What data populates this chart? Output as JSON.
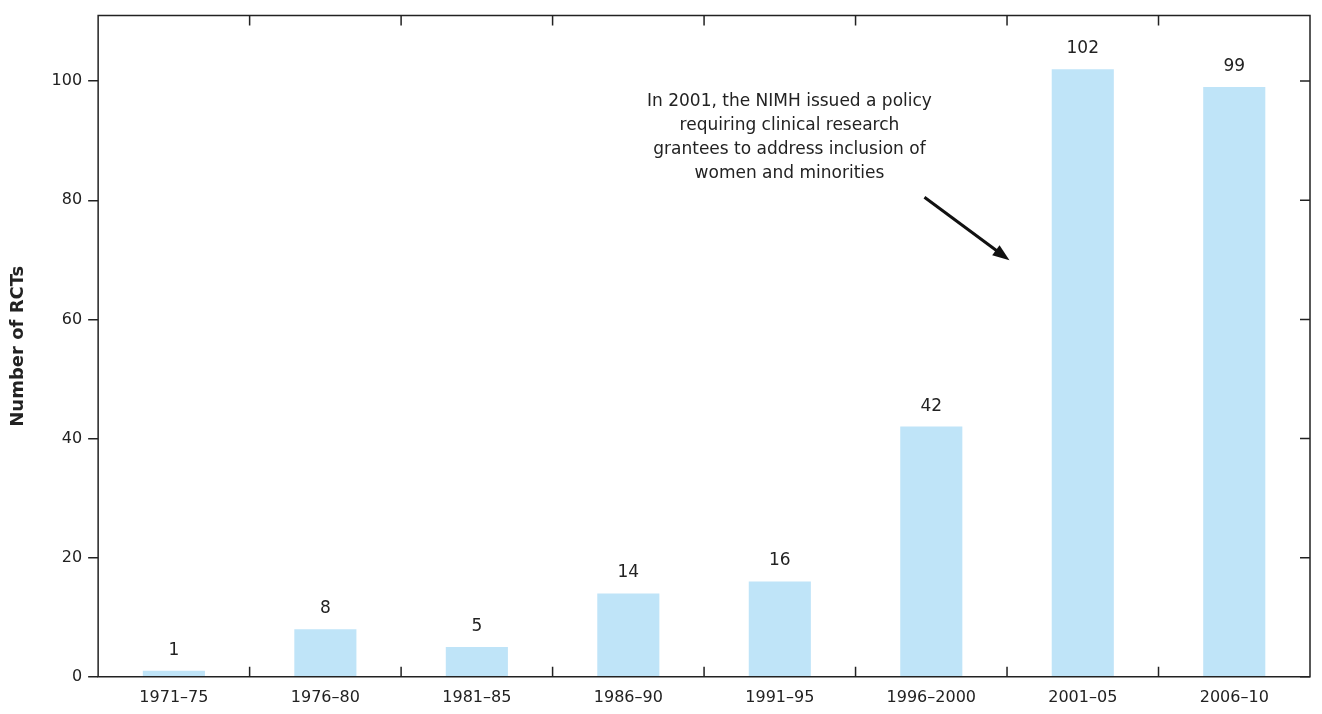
{
  "chart_data": {
    "type": "bar",
    "ylabel": "Number of RCTs",
    "categories": [
      "1971–75",
      "1976–80",
      "1981–85",
      "1986–90",
      "1991–95",
      "1996–2000",
      "2001–05",
      "2006–10"
    ],
    "values": [
      1,
      8,
      5,
      14,
      16,
      42,
      102,
      99
    ],
    "color": "#bfe4f8",
    "ylim": [
      0,
      111
    ],
    "yticks": [
      0,
      20,
      40,
      60,
      80,
      100
    ],
    "grid": false,
    "legend": false,
    "data_labels": true,
    "annotations": [
      "In 2001, the NIMH issued a policy requiring clinical research grantees to address inclusion of women and minorities"
    ]
  }
}
